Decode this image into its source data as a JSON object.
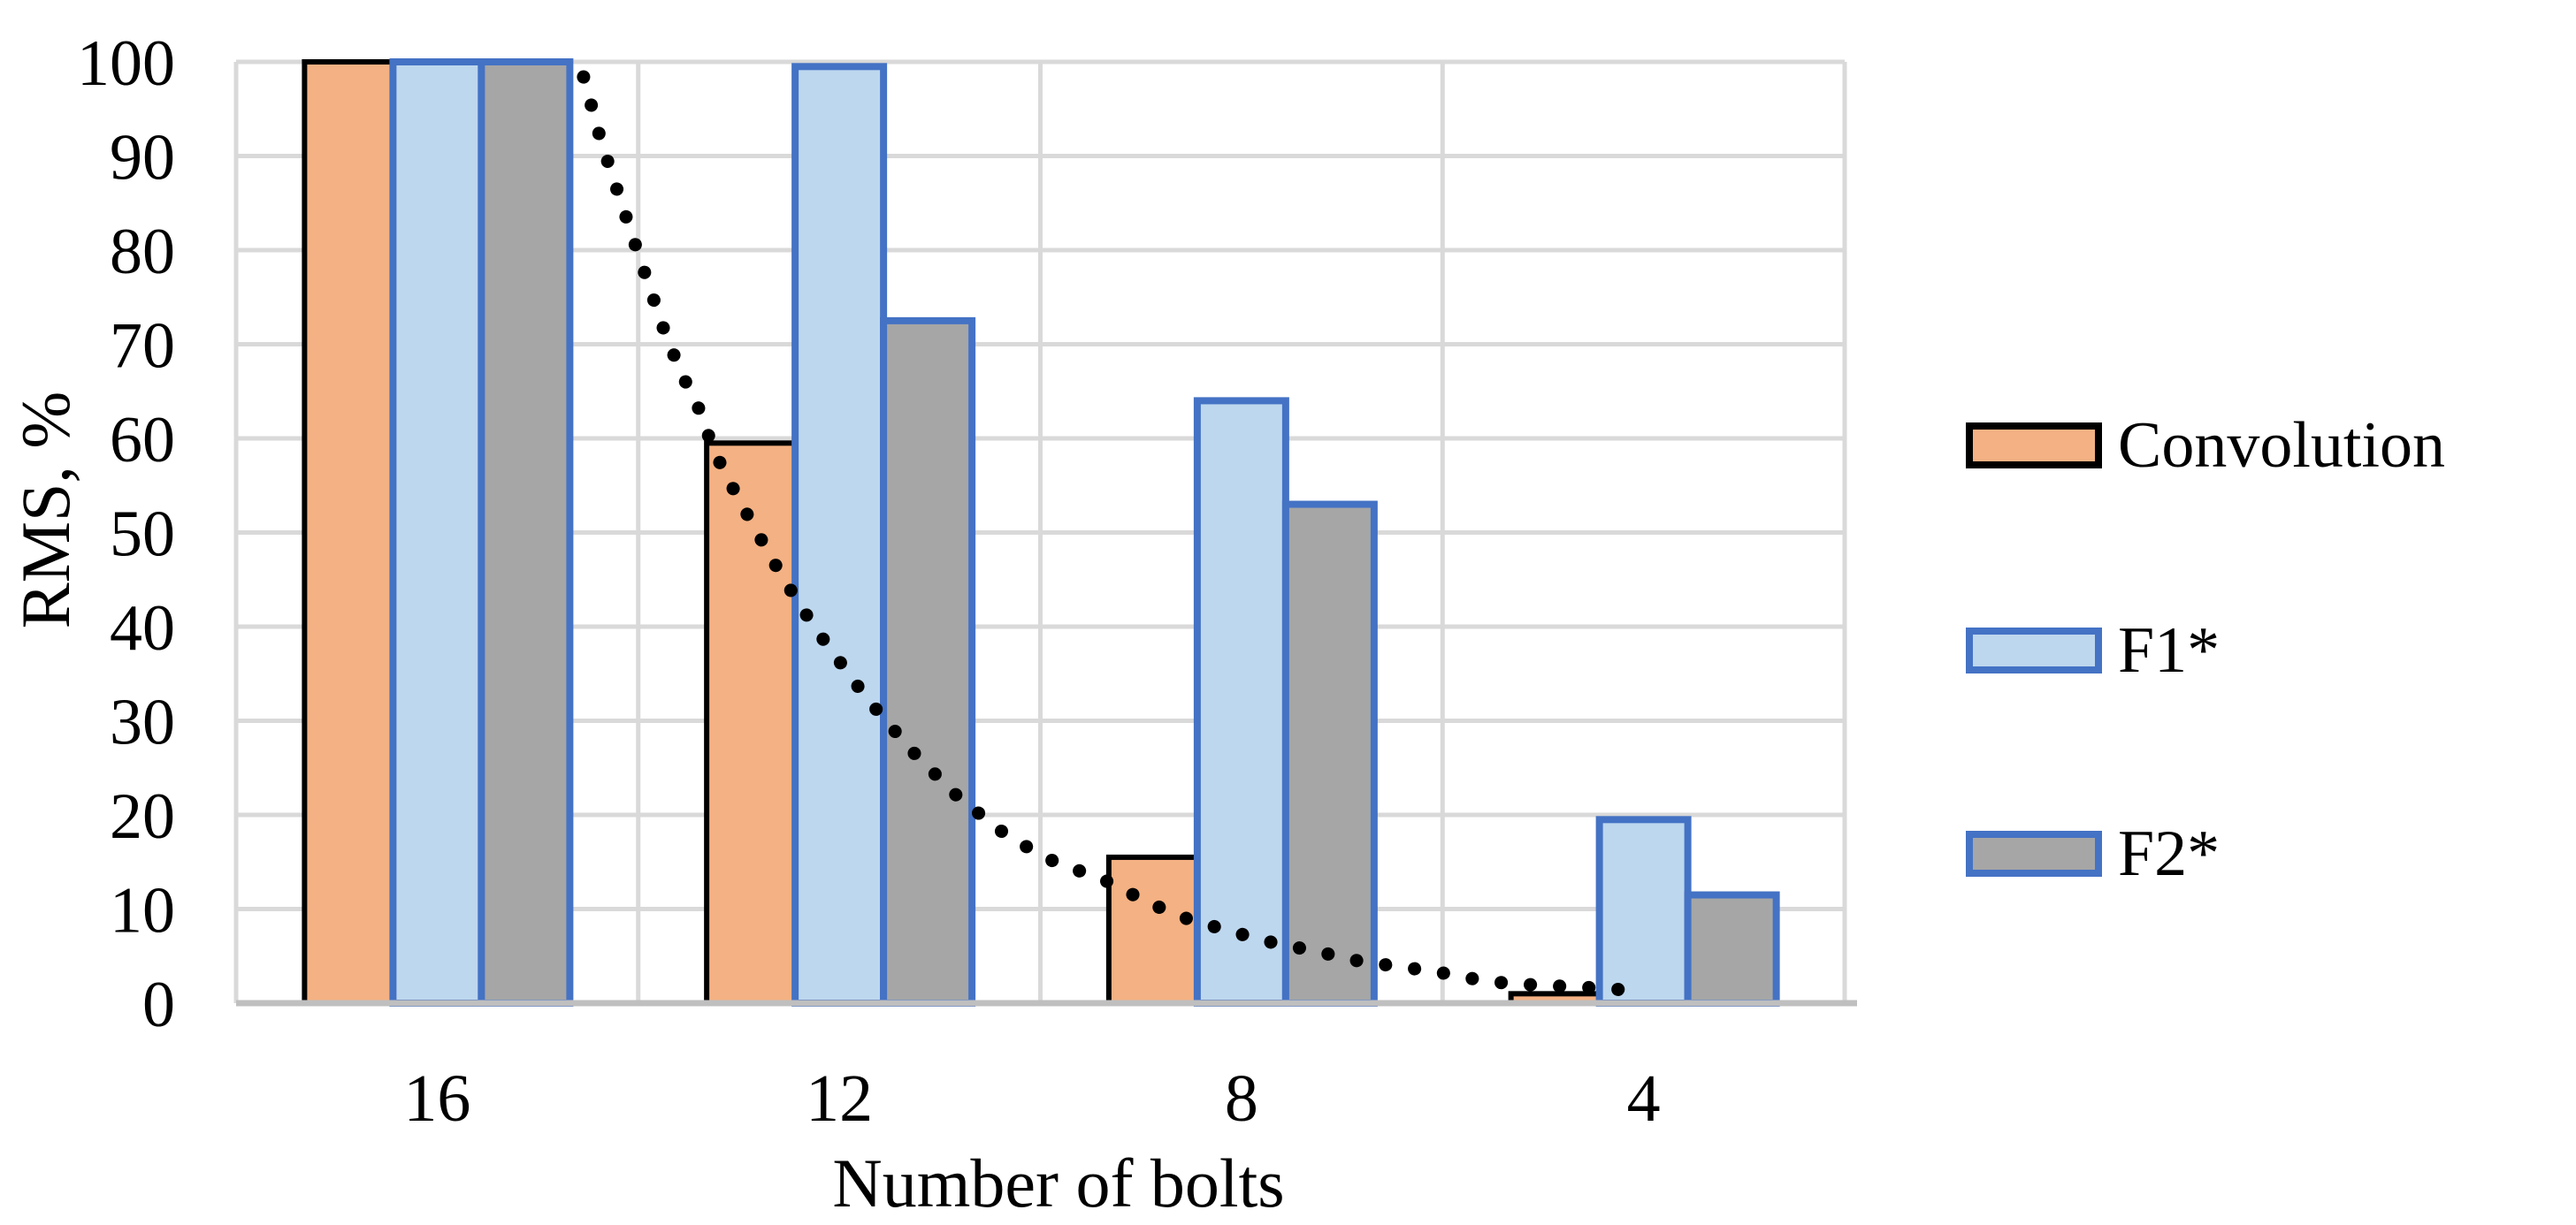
{
  "figure": {
    "background": "#FFFFFF",
    "colors": {
      "grid": "#D9D9D9",
      "axis_line": "#BFBFBF",
      "convolution_fill": "#F4B183",
      "convolution_border": "#000000",
      "f1_fill": "#BDD7EE",
      "f2_fill": "#A6A6A6",
      "blue_border": "#4472C4",
      "trend_dots": "#000000"
    }
  },
  "chart_data": {
    "type": "bar",
    "title": "",
    "xlabel": "Number of bolts",
    "ylabel": "RMS, %",
    "categories": [
      "16",
      "12",
      "8",
      "4"
    ],
    "series": [
      {
        "name": "Convolution",
        "fill": "#F4B183",
        "border": "#000000",
        "values": [
          100,
          59.5,
          15.5,
          1
        ]
      },
      {
        "name": "F1*",
        "fill": "#BDD7EE",
        "border": "#4472C4",
        "values": [
          100,
          99.5,
          64,
          19.5
        ]
      },
      {
        "name": "F2*",
        "fill": "#A6A6A6",
        "border": "#4472C4",
        "values": [
          100,
          72.5,
          53,
          11.5
        ]
      }
    ],
    "ylim": [
      0,
      100
    ],
    "yticks": [
      0,
      10,
      20,
      30,
      40,
      50,
      60,
      70,
      80,
      90,
      100
    ],
    "grid": "horizontal gridlines every 10, vertical gridlines at category boundaries",
    "legend_position": "right",
    "trendline": {
      "applies_to": "Convolution",
      "style": "dotted",
      "color": "#000000",
      "points_uv": [
        [
          0.864,
          98.4
        ],
        [
          0.908,
          91.5
        ],
        [
          0.959,
          84.9
        ],
        [
          1.011,
          78.2
        ],
        [
          1.064,
          71.5
        ],
        [
          1.104,
          67.2
        ],
        [
          1.15,
          63.2
        ],
        [
          1.19,
          58.5
        ],
        [
          1.238,
          54.5
        ],
        [
          1.289,
          50.5
        ],
        [
          1.346,
          46.2
        ],
        [
          1.403,
          42.2
        ],
        [
          1.464,
          38.4
        ],
        [
          1.568,
          32.4
        ],
        [
          1.678,
          26.9
        ],
        [
          1.788,
          22.2
        ],
        [
          1.898,
          18.4
        ],
        [
          2.008,
          15.5
        ],
        [
          2.168,
          12.9
        ],
        [
          2.272,
          10.6
        ],
        [
          2.369,
          8.9
        ],
        [
          2.476,
          7.6
        ],
        [
          2.58,
          6.4
        ],
        [
          2.687,
          5.5
        ],
        [
          2.799,
          4.4
        ],
        [
          2.907,
          3.8
        ],
        [
          3.017,
          3.1
        ],
        [
          3.11,
          2.3
        ],
        [
          3.239,
          1.9
        ],
        [
          3.349,
          1.7
        ],
        [
          3.459,
          1.4
        ]
      ]
    }
  },
  "legend": {
    "items": [
      {
        "label": "Convolution",
        "fill": "#F4B183",
        "border": "#000000"
      },
      {
        "label": "F1*",
        "fill": "#BDD7EE",
        "border": "#4472C4"
      },
      {
        "label": "F2*",
        "fill": "#A6A6A6",
        "border": "#4472C4"
      }
    ]
  }
}
